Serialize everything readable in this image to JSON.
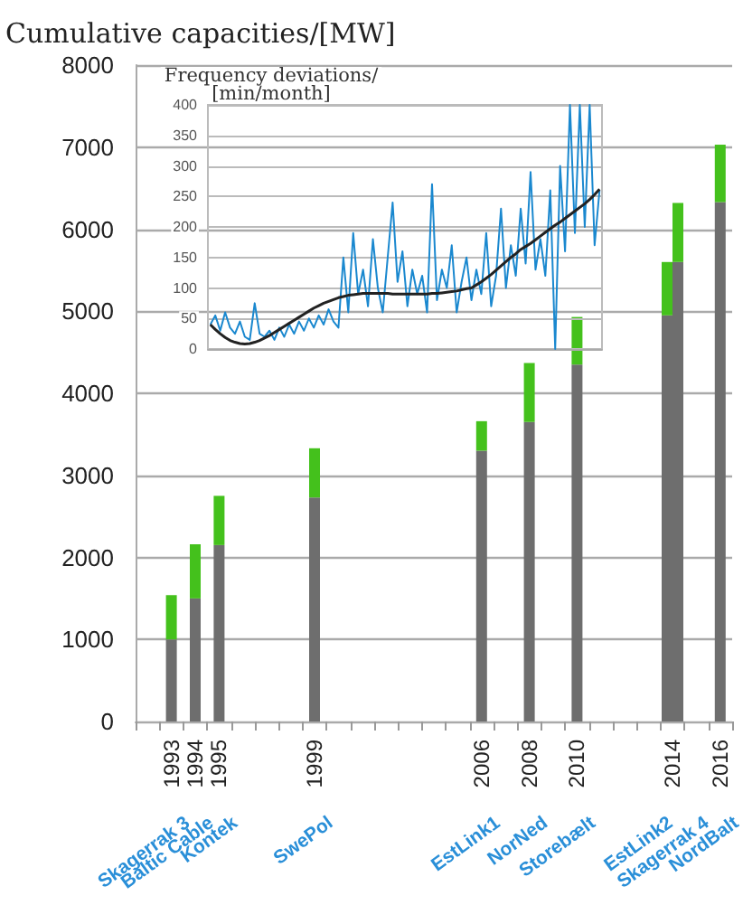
{
  "chart_data": [
    {
      "type": "bar",
      "ylabel": "Cumulative capacities/[MW]",
      "grid": "y",
      "categories": [
        null,
        "1993",
        "1994",
        "1995",
        null,
        null,
        null,
        "1999",
        null,
        null,
        null,
        null,
        null,
        null,
        "2006",
        null,
        "2008",
        null,
        "2010",
        null,
        null,
        null,
        "2014",
        null,
        "2016"
      ],
      "series": [
        {
          "color": "#6e6e6e",
          "values": [
            null,
            1000,
            1500,
            2150,
            null,
            null,
            null,
            2730,
            null,
            null,
            null,
            null,
            null,
            null,
            3300,
            null,
            3650,
            null,
            4350,
            null,
            null,
            null,
            4950,
            null,
            6330
          ]
        },
        {
          "color": "#44c11c",
          "values": [
            null,
            540,
            660,
            600,
            null,
            null,
            null,
            600,
            null,
            null,
            null,
            null,
            null,
            null,
            360,
            null,
            720,
            null,
            580,
            null,
            null,
            null,
            650,
            null,
            700
          ],
          "base": [
            null,
            1000,
            1500,
            2150,
            null,
            null,
            null,
            2730,
            null,
            null,
            null,
            null,
            null,
            null,
            3300,
            null,
            3650,
            null,
            4350,
            null,
            null,
            null,
            4950,
            null,
            6330
          ]
        },
        {
          "color": "#6e6e6e",
          "values": [
            null,
            null,
            null,
            null,
            null,
            null,
            null,
            null,
            null,
            null,
            null,
            null,
            null,
            null,
            null,
            null,
            null,
            null,
            null,
            null,
            null,
            null,
            5600,
            null,
            null
          ]
        },
        {
          "color": "#44c11c",
          "values": [
            null,
            null,
            null,
            null,
            null,
            null,
            null,
            null,
            null,
            null,
            null,
            null,
            null,
            null,
            null,
            null,
            null,
            null,
            null,
            null,
            null,
            null,
            720,
            null,
            null
          ],
          "base": [
            null,
            null,
            null,
            null,
            null,
            null,
            null,
            null,
            null,
            null,
            null,
            null,
            null,
            null,
            null,
            null,
            null,
            null,
            null,
            null,
            null,
            null,
            5600,
            null,
            null
          ]
        }
      ],
      "ylim": [
        0,
        8000
      ],
      "yticks": [
        0,
        1000,
        2000,
        3000,
        4000,
        5000,
        6000,
        7000,
        8000
      ],
      "annotations": [
        "Skagerrak 3",
        "Baltic Cable",
        "Kontek",
        "SwePol",
        "EstLink1",
        "NorNed",
        "Storebælt",
        "EstLink2",
        "Skagerrak 4",
        "NordBalt"
      ]
    },
    {
      "type": "line",
      "ylabel": "Frequency deviations/\n[min/month]",
      "grid": "y",
      "tick_labels": "y",
      "marker": "none",
      "categories": [
        null,
        null,
        null,
        null,
        null,
        null,
        null,
        null,
        null,
        null,
        null,
        null,
        null,
        null,
        null,
        null,
        null,
        null,
        null,
        null,
        null,
        null,
        null,
        null,
        null,
        null,
        null,
        null,
        null,
        null,
        null,
        null,
        null,
        null,
        null,
        null,
        null,
        null,
        null,
        null,
        null,
        null,
        null,
        null,
        null,
        null,
        null,
        null,
        null,
        null,
        null,
        null,
        null,
        null,
        null,
        null,
        null,
        null,
        null,
        null,
        null,
        null,
        null,
        null,
        null,
        null,
        null,
        null,
        null,
        null,
        null,
        null,
        null,
        null,
        null,
        null,
        null,
        null,
        null,
        null
      ],
      "series": [
        {
          "color": "#1a88cf",
          "values": [
            40,
            55,
            30,
            60,
            35,
            25,
            45,
            20,
            15,
            75,
            25,
            20,
            30,
            15,
            35,
            20,
            40,
            25,
            45,
            30,
            50,
            35,
            55,
            40,
            65,
            45,
            35,
            150,
            60,
            190,
            90,
            130,
            70,
            180,
            100,
            60,
            150,
            240,
            110,
            160,
            70,
            130,
            90,
            120,
            60,
            270,
            80,
            130,
            100,
            170,
            60,
            110,
            150,
            80,
            130,
            90,
            190,
            70,
            120,
            230,
            100,
            170,
            120,
            230,
            140,
            290,
            130,
            180,
            120,
            260,
            0,
            300,
            160,
            400,
            190,
            400,
            200,
            400,
            170,
            260
          ]
        },
        {
          "color": "#222222",
          "values": [
            40,
            32,
            25,
            19,
            14,
            11,
            9,
            8,
            9,
            11,
            14,
            18,
            22,
            27,
            32,
            37,
            42,
            47,
            52,
            57,
            62,
            67,
            71,
            75,
            78,
            81,
            84,
            86,
            88,
            89,
            90,
            91,
            91,
            91,
            91,
            91,
            91,
            90,
            90,
            90,
            90,
            90,
            90,
            90,
            90,
            91,
            91,
            92,
            93,
            94,
            95,
            97,
            99,
            100,
            105,
            110,
            116,
            122,
            129,
            136,
            143,
            150,
            156,
            163,
            168,
            173,
            179,
            185,
            191,
            197,
            203,
            208,
            214,
            220,
            226,
            232,
            238,
            245,
            253,
            262
          ]
        }
      ],
      "ylim": [
        0,
        400
      ],
      "yticks": [
        0,
        50,
        100,
        150,
        200,
        250,
        300,
        350,
        400
      ]
    }
  ]
}
